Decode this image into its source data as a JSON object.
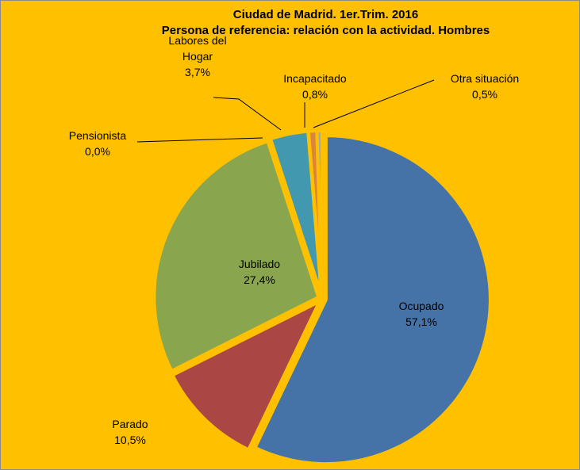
{
  "chart_data": {
    "type": "pie",
    "title": "Ciudad de Madrid. 1er.Trim. 2016",
    "subtitle": "Persona de referencia: relación con la actividad. Hombres",
    "categories": [
      "Ocupado",
      "Parado",
      "Jubilado",
      "Pensionista",
      "Labores del Hogar",
      "Incapacitado",
      "Otra situación"
    ],
    "values": [
      57.1,
      10.5,
      27.4,
      0.0,
      3.7,
      0.8,
      0.5
    ],
    "value_labels": [
      "57,1%",
      "10,5%",
      "27,4%",
      "0,0%",
      "3,7%",
      "0,8%",
      "0,5%"
    ],
    "colors": [
      "#4572a7",
      "#aa4643",
      "#89a54e",
      "#71588f",
      "#4198af",
      "#db843d",
      "#93a9cf"
    ]
  }
}
